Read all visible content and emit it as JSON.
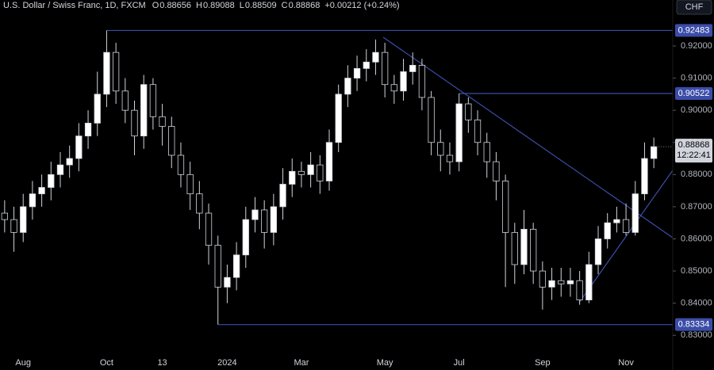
{
  "chart_data": {
    "type": "candlestick",
    "header": {
      "title": "U.S. Dollar / Swiss Franc, 1D, FXCM",
      "fields": [
        {
          "label": "O",
          "value": 0.88656
        },
        {
          "label": "H",
          "value": 0.89088
        },
        {
          "label": "L",
          "value": 0.88509
        },
        {
          "label": "C",
          "value": 0.88868
        }
      ],
      "change": "+0.00212 (+0.24%)"
    },
    "currency": "CHF",
    "last_price": 0.88868,
    "countdown": "12:22:41",
    "levels": [
      0.92483,
      0.90522,
      0.83334
    ],
    "categories": [
      null,
      null,
      "Aug",
      null,
      null,
      null,
      null,
      null,
      null,
      null,
      null,
      "Oct",
      null,
      null,
      null,
      null,
      null,
      "13",
      null,
      null,
      null,
      null,
      null,
      null,
      "2024",
      null,
      null,
      null,
      null,
      null,
      null,
      null,
      "Mar",
      null,
      null,
      null,
      null,
      null,
      null,
      null,
      null,
      "May",
      null,
      null,
      null,
      null,
      null,
      null,
      null,
      "Jul",
      null,
      null,
      null,
      null,
      null,
      null,
      null,
      null,
      "Sep",
      null,
      null,
      null,
      null,
      null,
      null,
      null,
      null,
      "Nov",
      null,
      null,
      null
    ],
    "open": [
      0.868,
      0.866,
      0.862,
      0.87,
      0.874,
      0.876,
      0.88,
      0.883,
      0.885,
      0.892,
      0.896,
      0.905,
      0.918,
      0.906,
      0.9,
      0.892,
      0.908,
      0.898,
      0.895,
      0.886,
      0.88,
      0.874,
      0.868,
      0.858,
      0.845,
      0.848,
      0.855,
      0.866,
      0.869,
      0.862,
      0.87,
      0.877,
      0.881,
      0.88,
      0.883,
      0.878,
      0.89,
      0.905,
      0.91,
      0.913,
      0.915,
      0.918,
      0.908,
      0.906,
      0.912,
      0.914,
      0.904,
      0.89,
      0.886,
      0.884,
      0.902,
      0.897,
      0.89,
      0.884,
      0.878,
      0.862,
      0.852,
      0.863,
      0.85,
      0.845,
      0.847,
      0.846,
      0.847,
      0.841,
      0.852,
      0.86,
      0.865,
      0.866,
      0.862,
      0.874,
      0.885
    ],
    "high": [
      0.872,
      0.87,
      0.874,
      0.878,
      0.88,
      0.884,
      0.887,
      0.889,
      0.896,
      0.9,
      0.912,
      0.92483,
      0.921,
      0.91,
      0.903,
      0.911,
      0.91,
      0.902,
      0.898,
      0.89,
      0.884,
      0.878,
      0.871,
      0.861,
      0.852,
      0.859,
      0.87,
      0.873,
      0.872,
      0.874,
      0.882,
      0.885,
      0.884,
      0.887,
      0.886,
      0.894,
      0.908,
      0.914,
      0.917,
      0.919,
      0.922,
      0.921,
      0.911,
      0.916,
      0.918,
      0.916,
      0.906,
      0.894,
      0.89,
      0.90522,
      0.904,
      0.9,
      0.893,
      0.887,
      0.88,
      0.865,
      0.869,
      0.865,
      0.853,
      0.851,
      0.851,
      0.851,
      0.85,
      0.856,
      0.864,
      0.868,
      0.87,
      0.871,
      0.878,
      0.89,
      0.8915
    ],
    "low": [
      0.862,
      0.856,
      0.859,
      0.866,
      0.87,
      0.872,
      0.876,
      0.879,
      0.881,
      0.888,
      0.892,
      0.901,
      0.902,
      0.896,
      0.886,
      0.888,
      0.894,
      0.889,
      0.882,
      0.876,
      0.869,
      0.863,
      0.852,
      0.83334,
      0.84,
      0.844,
      0.851,
      0.862,
      0.857,
      0.858,
      0.866,
      0.873,
      0.876,
      0.876,
      0.874,
      0.875,
      0.887,
      0.901,
      0.906,
      0.909,
      0.911,
      0.904,
      0.902,
      0.903,
      0.908,
      0.9,
      0.886,
      0.881,
      0.88,
      0.881,
      0.893,
      0.886,
      0.879,
      0.872,
      0.845,
      0.846,
      0.849,
      0.846,
      0.838,
      0.841,
      0.842,
      0.842,
      0.8395,
      0.84,
      0.849,
      0.857,
      0.862,
      0.861,
      0.861,
      0.872,
      0.882
    ],
    "close": [
      0.866,
      0.862,
      0.87,
      0.874,
      0.876,
      0.88,
      0.883,
      0.885,
      0.892,
      0.896,
      0.905,
      0.918,
      0.906,
      0.9,
      0.892,
      0.908,
      0.898,
      0.895,
      0.886,
      0.88,
      0.874,
      0.868,
      0.858,
      0.845,
      0.848,
      0.855,
      0.866,
      0.869,
      0.862,
      0.87,
      0.877,
      0.881,
      0.88,
      0.883,
      0.878,
      0.89,
      0.905,
      0.91,
      0.913,
      0.915,
      0.918,
      0.908,
      0.906,
      0.912,
      0.914,
      0.904,
      0.89,
      0.886,
      0.884,
      0.902,
      0.897,
      0.89,
      0.884,
      0.878,
      0.862,
      0.852,
      0.863,
      0.85,
      0.845,
      0.847,
      0.846,
      0.847,
      0.841,
      0.852,
      0.86,
      0.865,
      0.866,
      0.862,
      0.874,
      0.885,
      0.88868
    ],
    "up_color": "#ffffff",
    "down_color": "#000000",
    "wick_color": "#d1d4dc",
    "level_color": "#3b4da8",
    "ylim": [
      0.8234,
      0.9343
    ],
    "yticks": [
      {
        "value": 0.83,
        "label": "0.83000"
      },
      {
        "value": 0.84,
        "label": "0.84000"
      },
      {
        "value": 0.85,
        "label": "0.85000"
      },
      {
        "value": 0.86,
        "label": "0.86000"
      },
      {
        "value": 0.87,
        "label": "0.87000"
      },
      {
        "value": 0.88,
        "label": "0.88000"
      },
      {
        "value": 0.89,
        "label": "0.89000"
      },
      {
        "value": 0.9,
        "label": "0.90000"
      },
      {
        "value": 0.91,
        "label": "0.91000"
      },
      {
        "value": 0.92,
        "label": "0.92000"
      }
    ],
    "grid": false
  }
}
